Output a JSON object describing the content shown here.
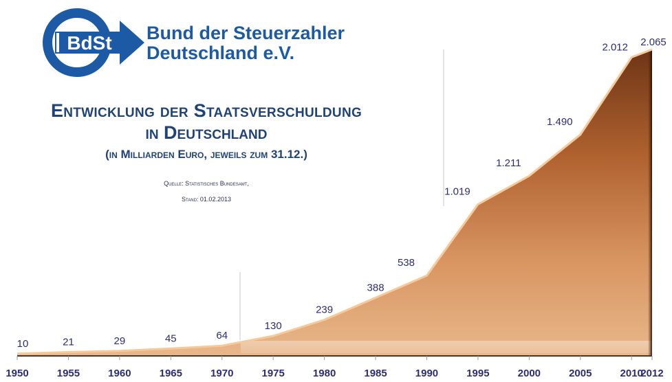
{
  "logo": {
    "abbr": "BdSt",
    "name_line1": "Bund der Steuerzahler",
    "name_line2": "Deutschland e.V."
  },
  "title": {
    "line1": "Entwicklung der Staatsverschuldung",
    "line2": "in Deutschland",
    "subtitle": "(in Milliarden Euro, jeweils zum 31.12.)"
  },
  "source": {
    "line1": "Quelle: Statistisches Bundesamt,",
    "line2": "Stand: 01.02.2013"
  },
  "colors": {
    "label": "#2b2d78",
    "area_dark": "#6e3516",
    "area_light": "#e3ad7c",
    "logo_blue": "#1c5aa6"
  },
  "chart_data": {
    "type": "area",
    "title": "Entwicklung der Staatsverschuldung in Deutschland",
    "ylabel": "Milliarden Euro",
    "xlabel": "",
    "categories": [
      "1950",
      "1955",
      "1960",
      "1965",
      "1970",
      "1975",
      "1980",
      "1985",
      "1990",
      "1995",
      "2000",
      "2005",
      "2010",
      "2012"
    ],
    "values": [
      10,
      21,
      29,
      45,
      64,
      130,
      239,
      388,
      538,
      1019,
      1211,
      1490,
      2012,
      2065
    ],
    "labels": [
      "10",
      "21",
      "29",
      "45",
      "64",
      "130",
      "239",
      "388",
      "538",
      "1.019",
      "1.211",
      "1.490",
      "2.012",
      "2.065"
    ],
    "ylim": [
      0,
      2065
    ],
    "grid": false,
    "legend": "none"
  }
}
